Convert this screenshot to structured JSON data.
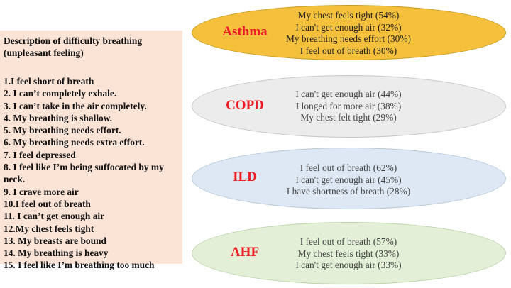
{
  "description_box": {
    "title": "Description of difficulty breathing (unpleasant feeling)",
    "items": [
      "1.I feel short of breath",
      "2. I can’t completely exhale.",
      "3. I can’t take in the air completely.",
      "4. My breathing is shallow.",
      "5. My breathing needs effort.",
      "6. My breathing needs extra effort.",
      "7. I feel depressed",
      "8. I feel like I’m being suffocated by my neck.",
      "9. I crave more air",
      "10.I feel out of breath",
      "11. I can’t get enough air",
      "12.My chest feels tight",
      "13. My breasts are bound",
      "14. My breathing is heavy",
      "15. I feel like I’m breathing too much"
    ]
  },
  "diseases": [
    {
      "label": "Asthma",
      "color": "#f5c13d",
      "items": [
        "My chest feels tight (54%)",
        "I can't get enough air (32%)",
        "My breathing needs effort (30%)",
        "I feel out of breath (30%)"
      ]
    },
    {
      "label": "COPD",
      "color": "#ececec",
      "items": [
        "I can't get enough air (44%)",
        "I longed for more air (38%)",
        "My chest felt tight (29%)"
      ]
    },
    {
      "label": "ILD",
      "color": "#dde8f4",
      "items": [
        "I feel out of breath (62%)",
        "I can't get enough air (45%)",
        "I have shortness of breath (28%)"
      ]
    },
    {
      "label": "AHF",
      "color": "#e3f0d7",
      "items": [
        "I feel out of breath (57%)",
        "My chest feels tight (33%)",
        "I can't get enough air (33%)"
      ]
    }
  ],
  "label_color": "#ee1c25"
}
